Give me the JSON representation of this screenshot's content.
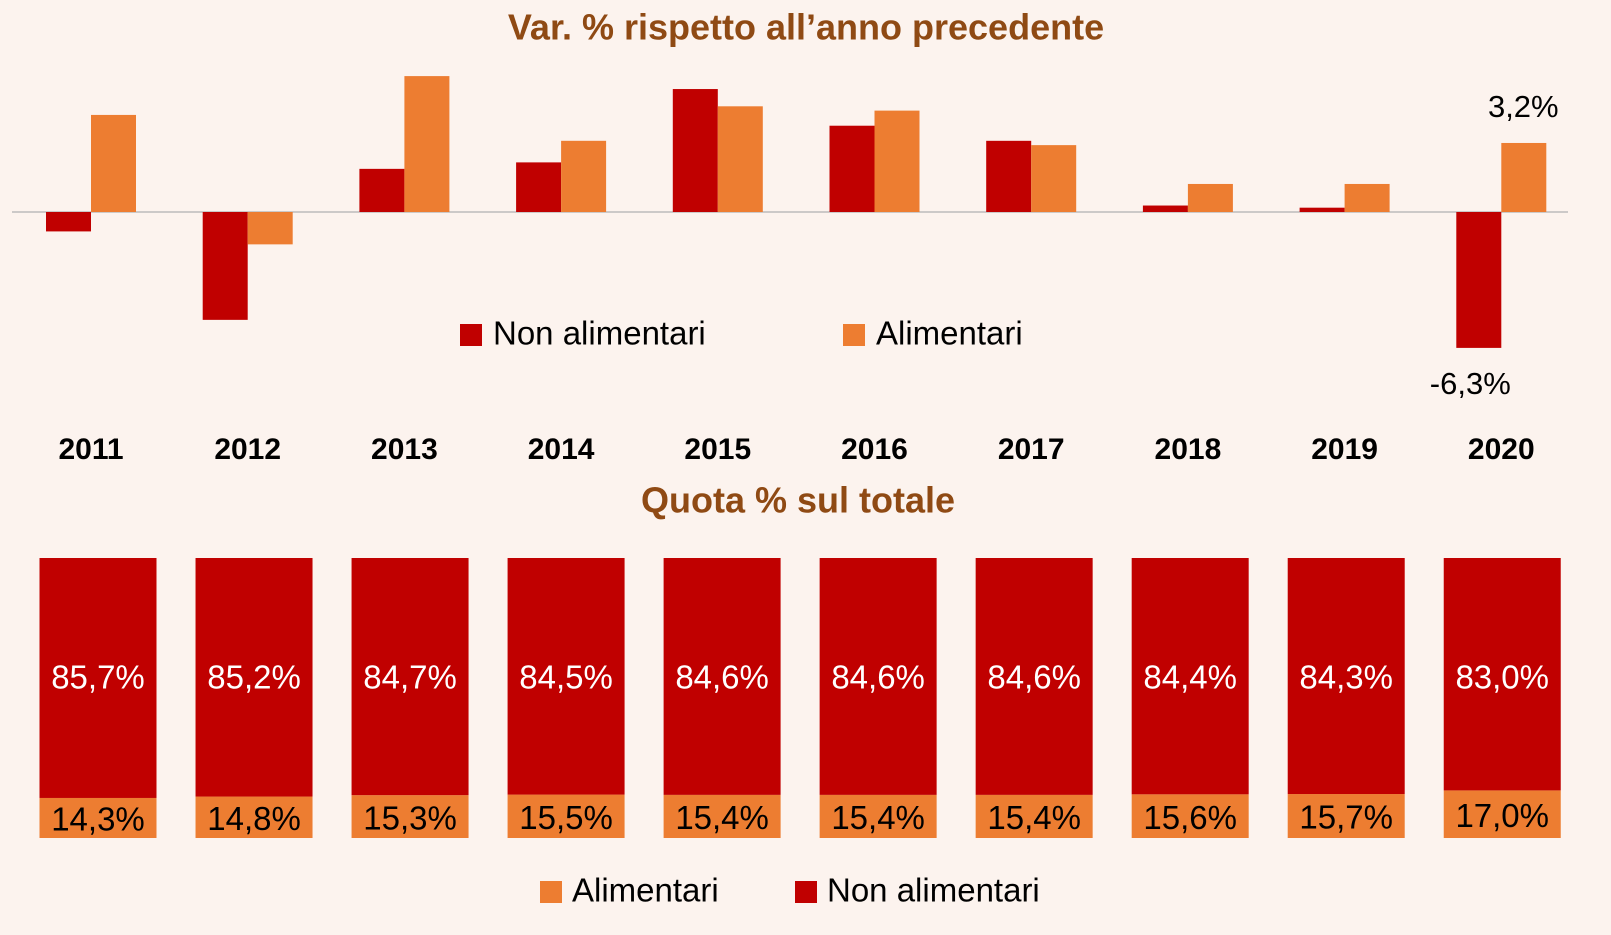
{
  "chart_data": [
    {
      "type": "bar",
      "title": "Var. % rispetto all’anno precedente",
      "categories": [
        "2011",
        "2012",
        "2013",
        "2014",
        "2015",
        "2016",
        "2017",
        "2018",
        "2019",
        "2020"
      ],
      "ylim": [
        -7,
        7
      ],
      "legend": "center",
      "series": [
        {
          "name": "Non alimentari",
          "color": "#c00000",
          "values": [
            -0.9,
            -5.0,
            2.0,
            2.3,
            5.7,
            4.0,
            3.3,
            0.3,
            0.2,
            -6.3
          ],
          "value_labels": [
            null,
            null,
            null,
            null,
            null,
            null,
            null,
            null,
            null,
            "-6,3%"
          ]
        },
        {
          "name": "Alimentari",
          "color": "#ed7d31",
          "values": [
            4.5,
            -1.5,
            6.3,
            3.3,
            4.9,
            4.7,
            3.1,
            1.3,
            1.3,
            3.2
          ],
          "value_labels": [
            null,
            null,
            null,
            null,
            null,
            null,
            null,
            null,
            null,
            "3,2%"
          ]
        }
      ]
    },
    {
      "type": "stacked_bar",
      "title": "Quota % sul totale",
      "ylim": [
        0,
        100
      ],
      "legend": "bottom",
      "series": [
        {
          "name": "Alimentari",
          "color": "#ed7d31",
          "values": [
            14.3,
            14.8,
            15.3,
            15.5,
            15.4,
            15.4,
            15.4,
            15.6,
            15.7,
            17.0
          ],
          "value_labels": [
            "14,3%",
            "14,8%",
            "15,3%",
            "15,5%",
            "15,4%",
            "15,4%",
            "15,4%",
            "15,6%",
            "15,7%",
            "17,0%"
          ]
        },
        {
          "name": "Non alimentari",
          "color": "#c00000",
          "values": [
            85.7,
            85.2,
            84.7,
            84.5,
            84.6,
            84.6,
            84.6,
            84.4,
            84.3,
            83.0
          ],
          "value_labels": [
            "85,7%",
            "85,2%",
            "84,7%",
            "84,5%",
            "84,6%",
            "84,6%",
            "84,6%",
            "84,4%",
            "84,3%",
            "83,0%"
          ]
        }
      ]
    }
  ]
}
